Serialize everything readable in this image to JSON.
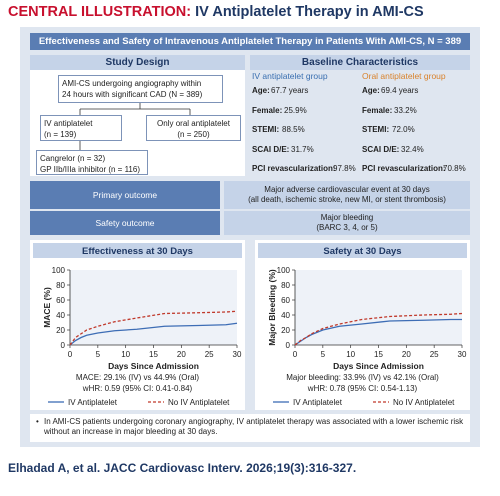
{
  "header": {
    "label": "CENTRAL ILLUSTRATION:",
    "title": "IV Antiplatelet Therapy in AMI-CS"
  },
  "banner": "Effectiveness and Safety of Intravenous Antiplatelet Therapy in Patients With AMI-CS, N = 389",
  "study_design": {
    "title": "Study Design",
    "population": [
      "AMI-CS undergoing angiography within",
      "24 hours with significant CAD (N = 389)"
    ],
    "iv": [
      "IV antiplatelet",
      "(n = 139)"
    ],
    "oral": [
      "Only oral antiplatelet",
      "(n = 250)"
    ],
    "agents": [
      "Cangrelor (n = 32)",
      "GP IIb/IIIa inhibitor (n = 116)"
    ]
  },
  "baseline": {
    "title": "Baseline Characteristics",
    "groups": [
      "IV antiplatelet group",
      "Oral antiplatelet group"
    ],
    "rows": [
      [
        "Age:",
        "67.7 years",
        "69.4 years"
      ],
      [
        "Female:",
        "25.9%",
        "33.2%"
      ],
      [
        "STEMI:",
        "88.5%",
        "72.0%"
      ],
      [
        "SCAI D/E:",
        "31.7%",
        "32.4%"
      ],
      [
        "PCI revascularization:",
        "97.8%",
        "70.8%"
      ]
    ]
  },
  "outcomes": [
    {
      "label": "Primary outcome",
      "text": [
        "Major adverse cardiovascular event at 30 days",
        "(all death, ischemic stroke, new MI, or stent thrombosis)"
      ]
    },
    {
      "label": "Safety outcome",
      "text": [
        "Major bleeding",
        "(BARC 3, 4, or 5)"
      ]
    }
  ],
  "chart_data": [
    {
      "type": "line",
      "title": "Effectiveness at 30 Days",
      "y_label": "MACE (%)",
      "x_label": "Days Since Admission",
      "x": [
        0,
        1,
        2,
        3,
        5,
        8,
        12,
        17,
        23,
        28,
        30
      ],
      "series": [
        {
          "name": "IV Antiplatelet",
          "color": "#3d6db5",
          "dashed": false,
          "values": [
            0,
            6,
            10,
            13,
            16,
            19,
            21,
            25,
            26,
            27,
            29
          ]
        },
        {
          "name": "No IV Antiplatelet",
          "color": "#c0392b",
          "dashed": true,
          "values": [
            0,
            10,
            15,
            20,
            25,
            31,
            36,
            42,
            43,
            44,
            45
          ]
        }
      ],
      "xlim": [
        0,
        30
      ],
      "xticks": [
        0,
        5,
        10,
        15,
        20,
        25,
        30
      ],
      "ylim": [
        0,
        100
      ],
      "yticks": [
        0,
        20,
        40,
        60,
        80,
        100
      ],
      "annotations": [
        "MACE: 29.1% (IV) vs 44.9% (Oral)",
        "wHR: 0.59 (95% CI: 0.41-0.84)"
      ]
    },
    {
      "type": "line",
      "title": "Safety at 30 Days",
      "y_label": "Major Bleeding (%)",
      "x_label": "Days Since Admission",
      "x": [
        0,
        1,
        2,
        3,
        5,
        8,
        12,
        17,
        23,
        28,
        30
      ],
      "series": [
        {
          "name": "IV Antiplatelet",
          "color": "#3d6db5",
          "dashed": false,
          "values": [
            0,
            5,
            10,
            14,
            20,
            25,
            28,
            32,
            33,
            34,
            34
          ]
        },
        {
          "name": "No IV Antiplatelet",
          "color": "#c0392b",
          "dashed": true,
          "values": [
            0,
            6,
            10,
            15,
            22,
            28,
            34,
            38,
            40,
            41,
            42
          ]
        }
      ],
      "xlim": [
        0,
        30
      ],
      "xticks": [
        0,
        5,
        10,
        15,
        20,
        25,
        30
      ],
      "ylim": [
        0,
        100
      ],
      "yticks": [
        0,
        20,
        40,
        60,
        80,
        100
      ],
      "annotations": [
        "Major bleeding: 33.9% (IV) vs 42.1% (Oral)",
        "wHR: 0.78 (95% CI: 0.54-1.13)"
      ]
    }
  ],
  "bullet": "In AMI-CS patients undergoing coronary angiography, IV antiplatelet therapy was associated with a lower ischemic risk without an increase in major bleeding at 30 days.",
  "citation": "Elhadad A, et al. JACC Cardiovasc Interv. 2026;19(3):316-327."
}
